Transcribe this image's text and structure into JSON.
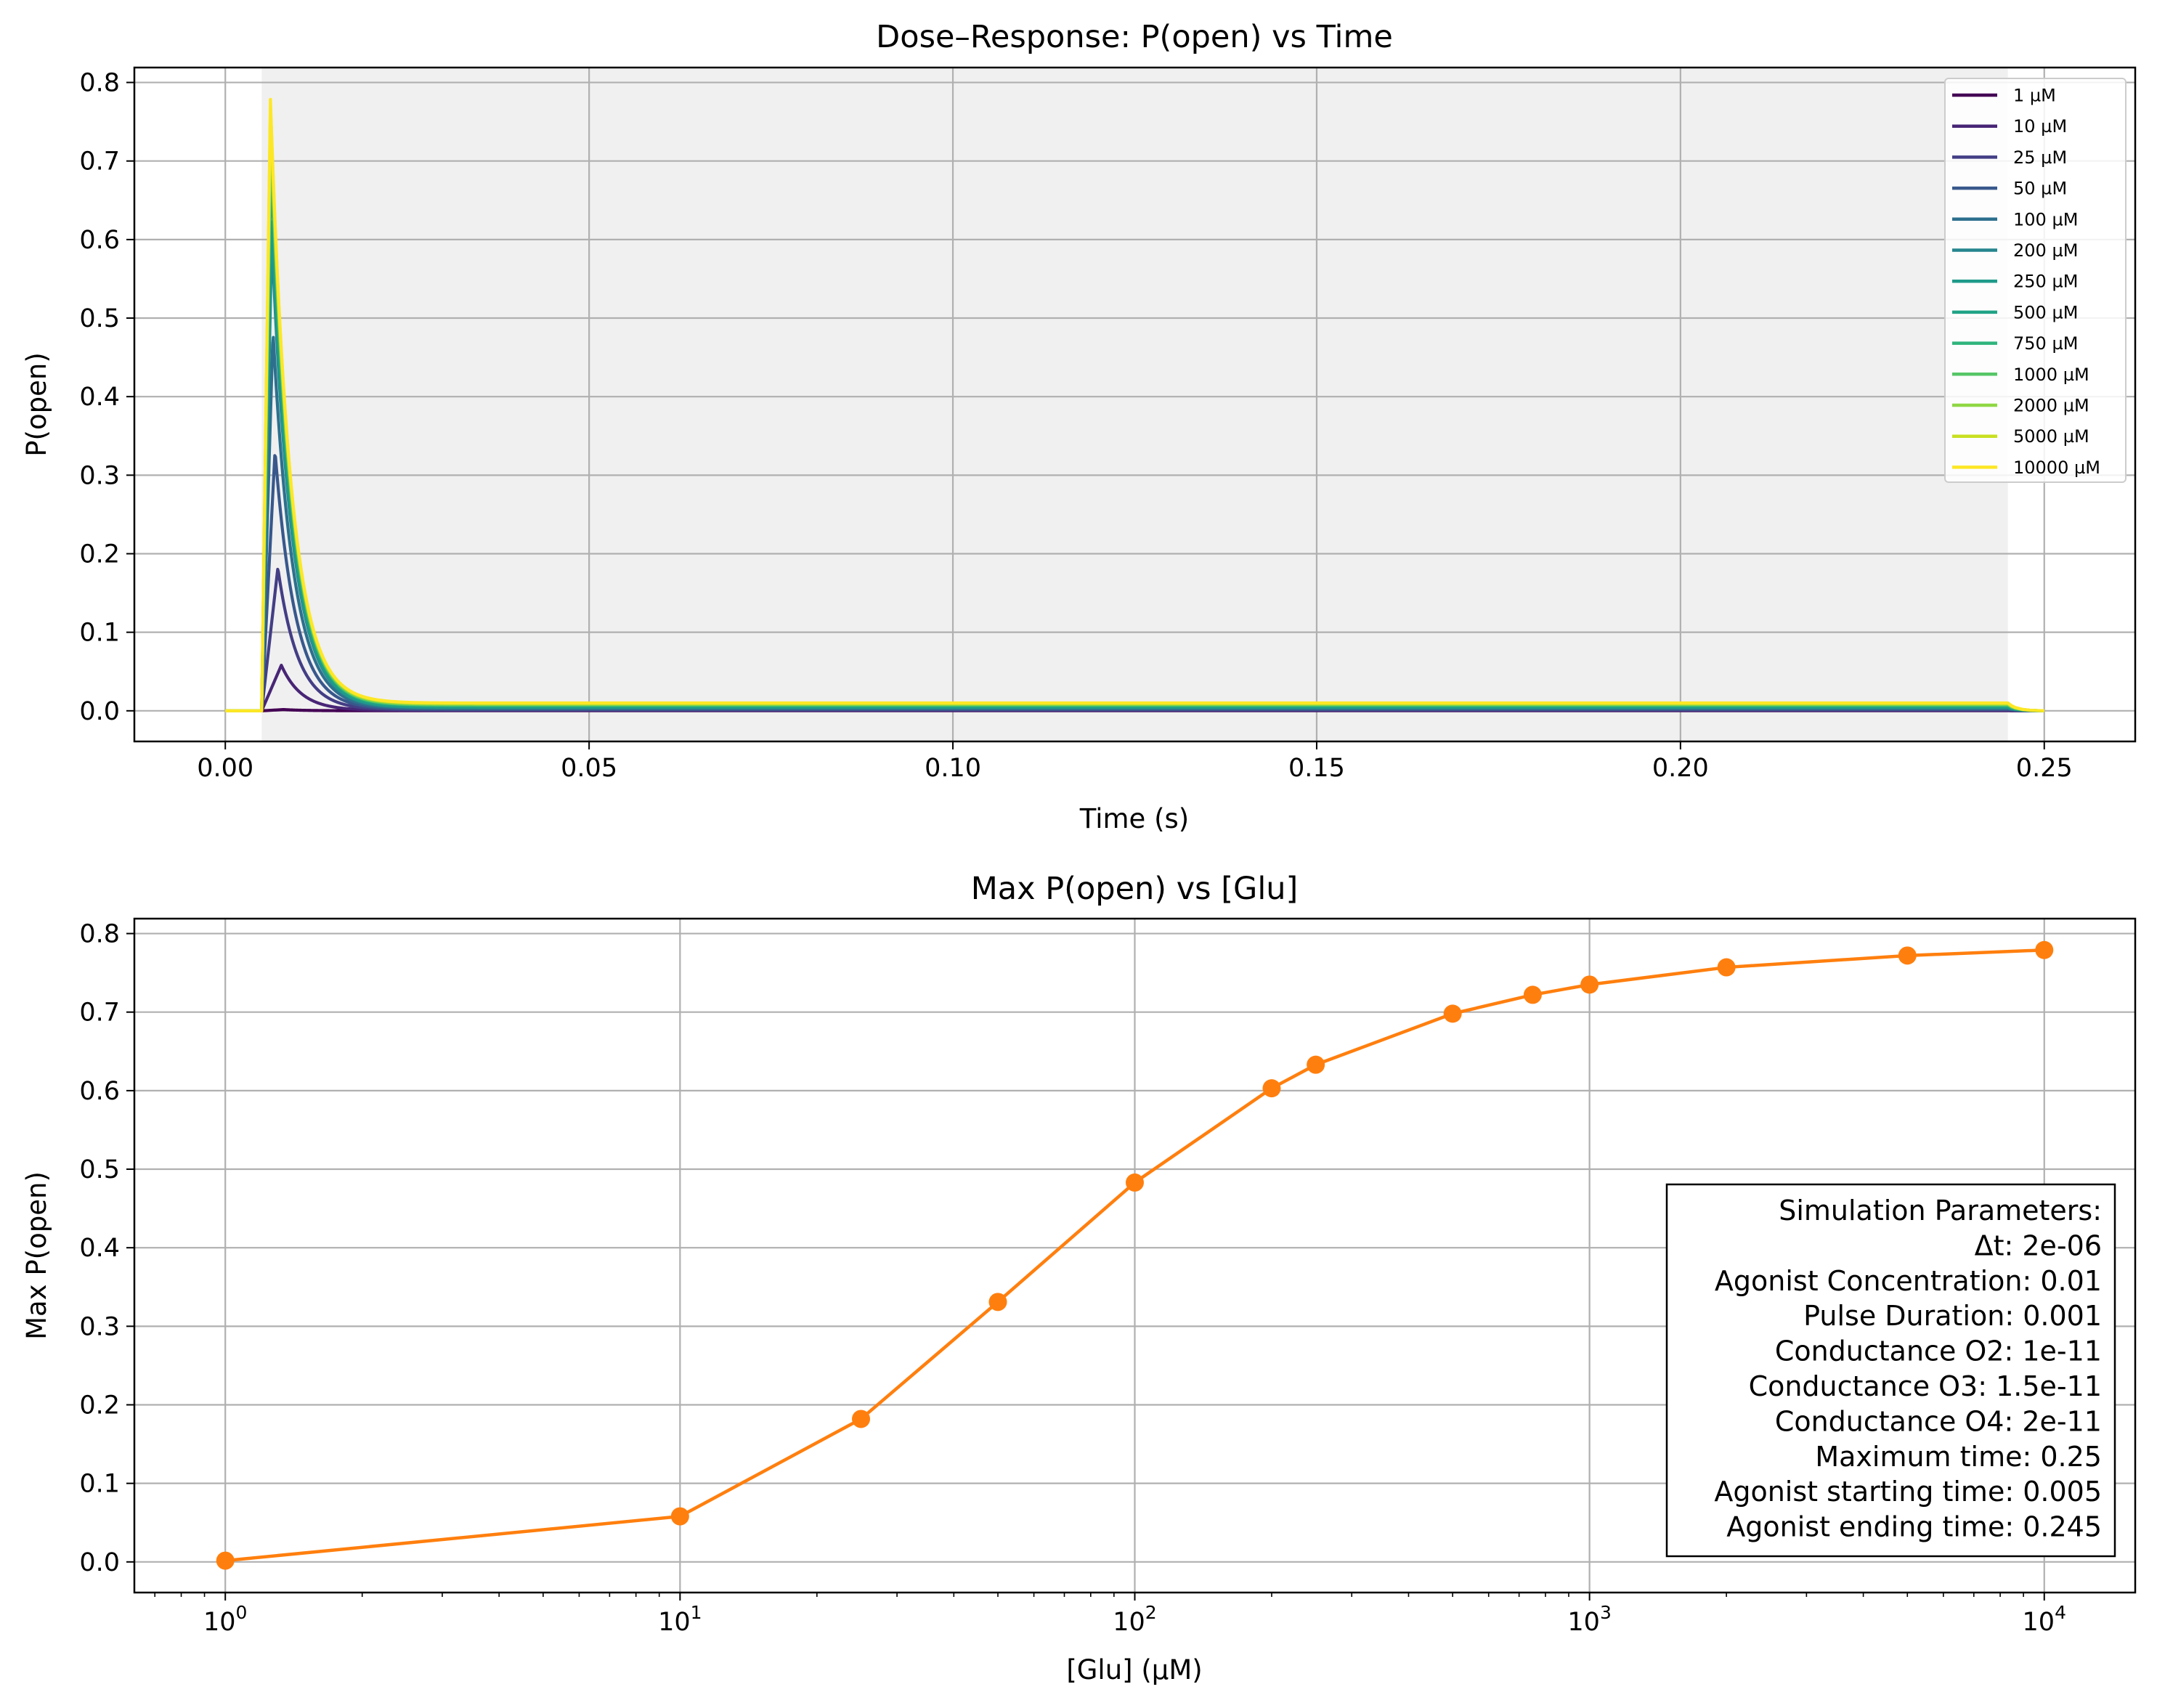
{
  "chart_data": [
    {
      "type": "line",
      "title": "Dose–Response: P(open) vs Time",
      "xlabel": "Time (s)",
      "ylabel": "P(open)",
      "xlim": [
        -0.0125,
        0.2625
      ],
      "ylim": [
        -0.039,
        0.819
      ],
      "xticks": [
        0.0,
        0.05,
        0.1,
        0.15,
        0.2,
        0.25
      ],
      "xtick_labels": [
        "0.00",
        "0.05",
        "0.10",
        "0.15",
        "0.20",
        "0.25"
      ],
      "yticks": [
        0.0,
        0.1,
        0.2,
        0.3,
        0.4,
        0.5,
        0.6,
        0.7,
        0.8
      ],
      "ytick_labels": [
        "0.0",
        "0.1",
        "0.2",
        "0.3",
        "0.4",
        "0.5",
        "0.6",
        "0.7",
        "0.8"
      ],
      "grid": true,
      "legend": "top-right",
      "shaded_region": {
        "x": [
          0.005,
          0.245
        ],
        "color": "#f0f0f0"
      },
      "series": [
        {
          "name": "1 µM",
          "color": "#440154",
          "peak": 0.0016,
          "plateau": 0.0001
        },
        {
          "name": "10 µM",
          "color": "#482576",
          "peak": 0.058,
          "plateau": 0.0005
        },
        {
          "name": "25 µM",
          "color": "#433e85",
          "peak": 0.182,
          "plateau": 0.0012
        },
        {
          "name": "50 µM",
          "color": "#38588c",
          "peak": 0.331,
          "plateau": 0.002
        },
        {
          "name": "100 µM",
          "color": "#2d708e",
          "peak": 0.483,
          "plateau": 0.003
        },
        {
          "name": "200 µM",
          "color": "#25858e",
          "peak": 0.603,
          "plateau": 0.004
        },
        {
          "name": "250 µM",
          "color": "#1f9a8a",
          "peak": 0.633,
          "plateau": 0.0045
        },
        {
          "name": "500 µM",
          "color": "#20a386",
          "peak": 0.698,
          "plateau": 0.006
        },
        {
          "name": "750 µM",
          "color": "#2fb47c",
          "peak": 0.722,
          "plateau": 0.007
        },
        {
          "name": "1000 µM",
          "color": "#56c667",
          "peak": 0.735,
          "plateau": 0.0075
        },
        {
          "name": "2000 µM",
          "color": "#8fd744",
          "peak": 0.757,
          "plateau": 0.0085
        },
        {
          "name": "5000 µM",
          "color": "#c8e020",
          "peak": 0.772,
          "plateau": 0.0095
        },
        {
          "name": "10000 µM",
          "color": "#fde725",
          "peak": 0.779,
          "plateau": 0.01
        }
      ]
    },
    {
      "type": "line",
      "title": "Max P(open) vs [Glu]",
      "xlabel": "[Glu] (µM)",
      "ylabel": "Max P(open)",
      "xscale": "log",
      "xlim": [
        0.631,
        15849
      ],
      "ylim": [
        -0.039,
        0.819
      ],
      "xticks": [
        1,
        10,
        100,
        1000,
        10000
      ],
      "xtick_labels": [
        {
          "base": "10",
          "exp": "0"
        },
        {
          "base": "10",
          "exp": "1"
        },
        {
          "base": "10",
          "exp": "2"
        },
        {
          "base": "10",
          "exp": "3"
        },
        {
          "base": "10",
          "exp": "4"
        }
      ],
      "yticks": [
        0.0,
        0.1,
        0.2,
        0.3,
        0.4,
        0.5,
        0.6,
        0.7,
        0.8
      ],
      "ytick_labels": [
        "0.0",
        "0.1",
        "0.2",
        "0.3",
        "0.4",
        "0.5",
        "0.6",
        "0.7",
        "0.8"
      ],
      "grid": true,
      "color": "#ff7f0e",
      "x": [
        1,
        10,
        25,
        50,
        100,
        200,
        250,
        500,
        750,
        1000,
        2000,
        5000,
        10000
      ],
      "y": [
        0.0016,
        0.058,
        0.182,
        0.331,
        0.483,
        0.603,
        0.633,
        0.698,
        0.722,
        0.735,
        0.757,
        0.772,
        0.779
      ],
      "annotation_lines": [
        "Simulation Parameters:",
        "Δt: 2e-06",
        "Agonist Concentration: 0.01",
        "Pulse Duration: 0.001",
        "Conductance O2: 1e-11",
        "Conductance O3: 1.5e-11",
        "Conductance O4: 2e-11",
        "Maximum time: 0.25",
        "Agonist starting time: 0.005",
        "Agonist ending time: 0.245"
      ]
    }
  ]
}
